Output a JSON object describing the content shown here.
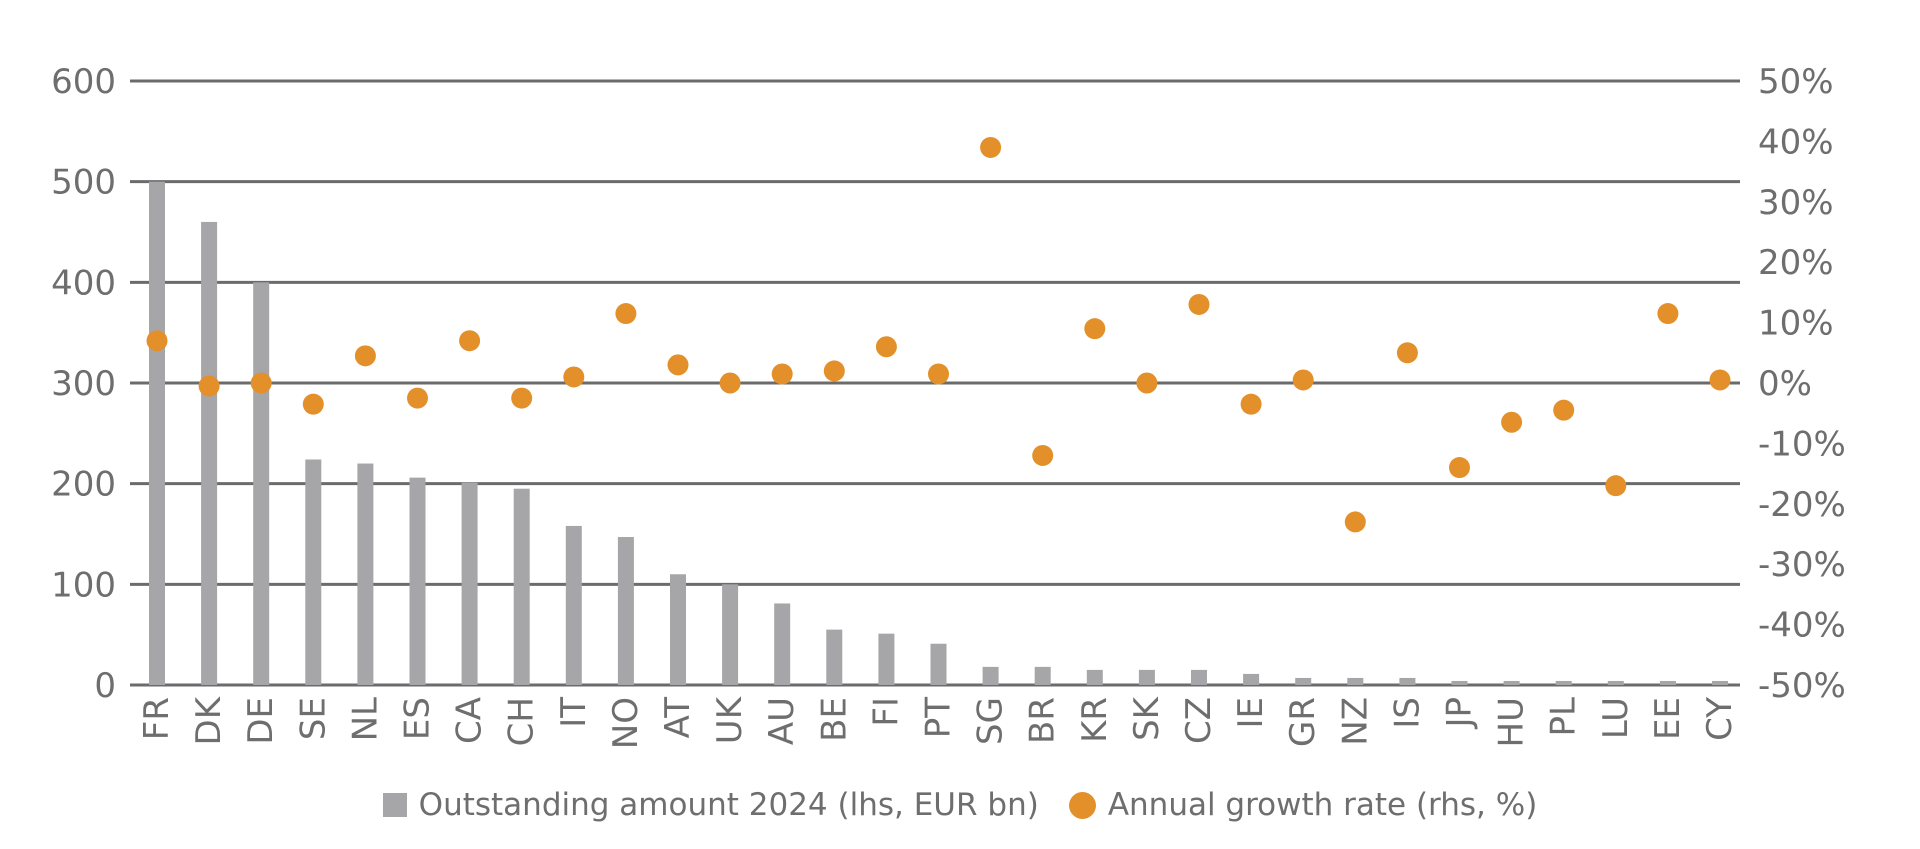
{
  "chart_data": {
    "type": "bar",
    "categories": [
      "FR",
      "DK",
      "DE",
      "SE",
      "NL",
      "ES",
      "CA",
      "CH",
      "IT",
      "NO",
      "AT",
      "UK",
      "AU",
      "BE",
      "FI",
      "PT",
      "SG",
      "BR",
      "KR",
      "SK",
      "CZ",
      "IE",
      "GR",
      "NZ",
      "IS",
      "JP",
      "HU",
      "PL",
      "LU",
      "EE",
      "CY"
    ],
    "series": [
      {
        "name": "Outstanding amount 2024 (lhs, EUR bn)",
        "kind": "bar",
        "axis": "left",
        "color": "#a6a6a8",
        "values": [
          500,
          460,
          400,
          224,
          220,
          206,
          201,
          195,
          158,
          147,
          110,
          100,
          81,
          55,
          51,
          41,
          18,
          18,
          15,
          15,
          15,
          11,
          7,
          7,
          7,
          4,
          4,
          4,
          4,
          4,
          4
        ]
      },
      {
        "name": "Annual growth rate (rhs, %)",
        "kind": "scatter",
        "axis": "right",
        "color": "#e3902b",
        "values": [
          7,
          -0.5,
          0,
          -3.5,
          4.5,
          -2.5,
          7,
          -2.5,
          1,
          11.5,
          3,
          0,
          1.5,
          2,
          6,
          1.5,
          39,
          -12,
          9,
          0,
          13,
          -3.5,
          0.5,
          -23,
          5,
          -14,
          -6.5,
          -4.5,
          -17,
          11.5,
          0.5
        ]
      }
    ],
    "y_left": {
      "min": 0,
      "max": 600,
      "ticks": [
        "0",
        "100",
        "200",
        "300",
        "400",
        "500",
        "600"
      ]
    },
    "y_right": {
      "min": -50,
      "max": 50,
      "ticks": [
        "-50%",
        "-40%",
        "-30%",
        "-20%",
        "-10%",
        "0%",
        "10%",
        "20%",
        "30%",
        "40%",
        "50%"
      ]
    },
    "gridlines": "horizontal",
    "legend_position": "bottom-center",
    "title": "",
    "xlabel": "",
    "ylabel": ""
  }
}
